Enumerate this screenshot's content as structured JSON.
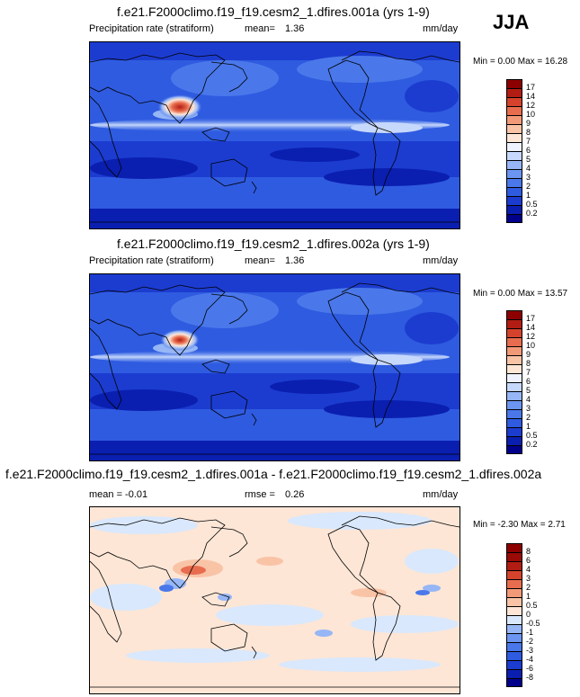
{
  "season": "JJA",
  "panels": [
    {
      "title": "f.e21.F2000climo.f19_f19.cesm2_1.dfires.001a (yrs 1-9)",
      "left_label": "Precipitation rate (stratiform)",
      "stat_label": "mean=",
      "stat_value": "1.36",
      "units": "mm/day",
      "minmax": "Min =   0.00 Max =  16.28"
    },
    {
      "title": "f.e21.F2000climo.f19_f19.cesm2_1.dfires.002a (yrs 1-9)",
      "left_label": "Precipitation rate (stratiform)",
      "stat_label": "mean=",
      "stat_value": "1.36",
      "units": "mm/day",
      "minmax": "Min =   0.00 Max =  13.57"
    },
    {
      "title": "f.e21.F2000climo.f19_f19.cesm2_1.dfires.001a - f.e21.F2000climo.f19_f19.cesm2_1.dfires.002a",
      "left_label": "mean =  -0.01",
      "stat_label": "rmse =",
      "stat_value": "0.26",
      "units": "mm/day",
      "minmax": "Min =  -2.30 Max =   2.71"
    }
  ],
  "chart_data": [
    {
      "type": "heatmap",
      "title": "f.e21.F2000climo.f19_f19.cesm2_1.dfires.001a (yrs 1-9)",
      "variable": "Precipitation rate (stratiform)",
      "units": "mm/day",
      "mean": 1.36,
      "min": 0.0,
      "max": 16.28,
      "levels": [
        "0.2",
        "0.5",
        "1",
        "2",
        "3",
        "4",
        "5",
        "6",
        "7",
        "8",
        "9",
        "10",
        "12",
        "14",
        "17"
      ],
      "colors": [
        "#00008a",
        "#0a1fb0",
        "#1c3cd0",
        "#2f5be0",
        "#4a78ea",
        "#6b95f0",
        "#96b6f6",
        "#c6d8fb",
        "#eef3ff",
        "#fde6d6",
        "#f9c3a6",
        "#f29a78",
        "#e86d4e",
        "#d5432c",
        "#b21d13",
        "#8c0000"
      ]
    },
    {
      "type": "heatmap",
      "title": "f.e21.F2000climo.f19_f19.cesm2_1.dfires.002a (yrs 1-9)",
      "variable": "Precipitation rate (stratiform)",
      "units": "mm/day",
      "mean": 1.36,
      "min": 0.0,
      "max": 13.57,
      "levels": [
        "0.2",
        "0.5",
        "1",
        "2",
        "3",
        "4",
        "5",
        "6",
        "7",
        "8",
        "9",
        "10",
        "12",
        "14",
        "17"
      ],
      "colors": [
        "#00008a",
        "#0a1fb0",
        "#1c3cd0",
        "#2f5be0",
        "#4a78ea",
        "#6b95f0",
        "#96b6f6",
        "#c6d8fb",
        "#eef3ff",
        "#fde6d6",
        "#f9c3a6",
        "#f29a78",
        "#e86d4e",
        "#d5432c",
        "#b21d13",
        "#8c0000"
      ]
    },
    {
      "type": "heatmap",
      "title": "f.e21.F2000climo.f19_f19.cesm2_1.dfires.001a - f.e21.F2000climo.f19_f19.cesm2_1.dfires.002a",
      "units": "mm/day",
      "mean": -0.01,
      "rmse": 0.26,
      "min": -2.3,
      "max": 2.71,
      "levels": [
        "-8",
        "-6",
        "-4",
        "-3",
        "-2",
        "-1",
        "-0.5",
        "0",
        "0.5",
        "1",
        "2",
        "3",
        "4",
        "6",
        "8"
      ],
      "colors": [
        "#00008a",
        "#0a1fb0",
        "#1c3cd0",
        "#2f5be0",
        "#4a78ea",
        "#6b95f0",
        "#96b6f6",
        "#d9e8fc",
        "#fde6d6",
        "#f9c3a6",
        "#f29a78",
        "#e86d4e",
        "#d5432c",
        "#b21d13",
        "#9a0a06",
        "#8c0000"
      ]
    }
  ]
}
